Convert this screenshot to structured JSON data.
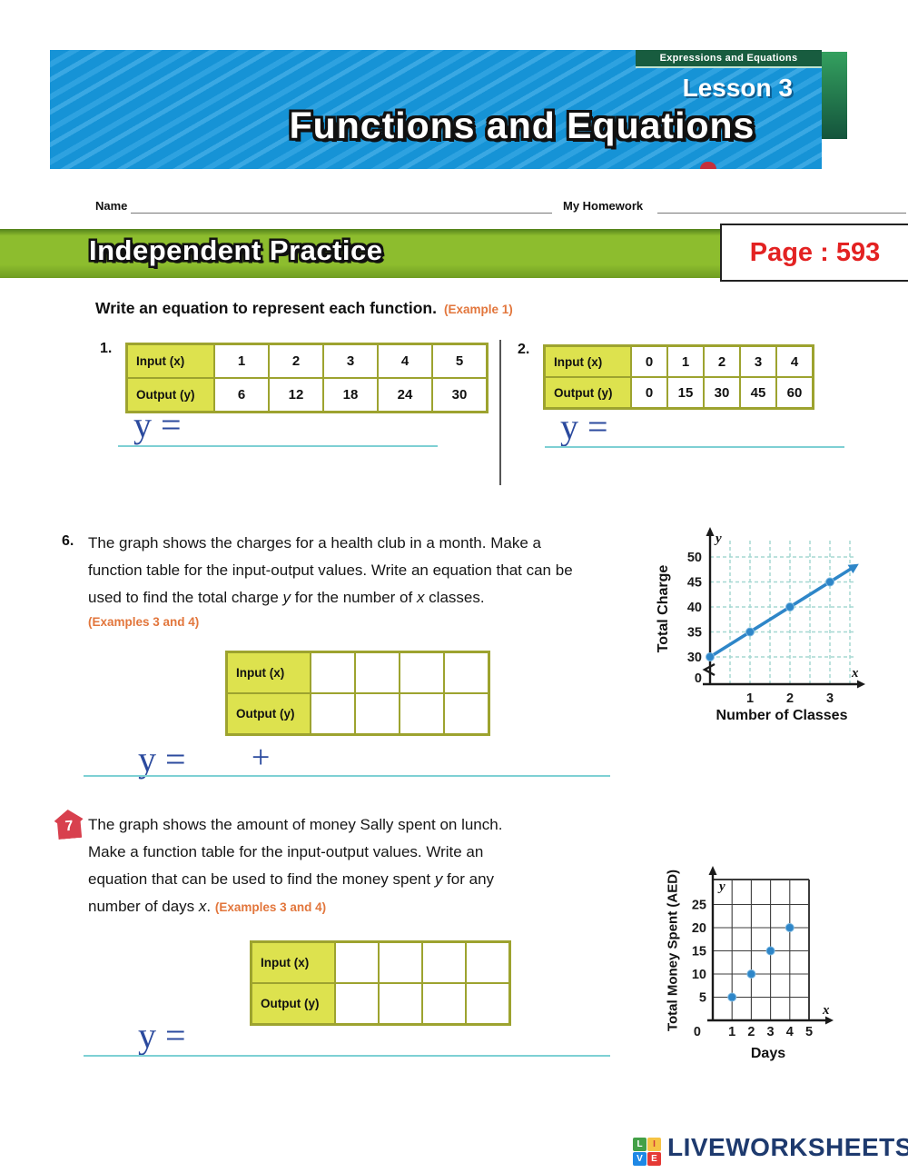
{
  "header": {
    "chapter_label": "Expressions and Equations",
    "lesson_label": "Lesson 3",
    "title": "Functions and Equations"
  },
  "name_row": {
    "name_label": "Name",
    "homework_label": "My Homework"
  },
  "banner": {
    "title": "Independent Practice",
    "page_ref": "Page : 593"
  },
  "section": {
    "instruction": "Write an equation to represent each function.",
    "example_ref": "(Example 1)"
  },
  "problems": {
    "p1": {
      "number": "1.",
      "table": {
        "input_label": "Input (x)",
        "output_label": "Output (y)",
        "inputs": [
          "1",
          "2",
          "3",
          "4",
          "5"
        ],
        "outputs": [
          "6",
          "12",
          "18",
          "24",
          "30"
        ]
      },
      "answer_prefix": "y ="
    },
    "p2": {
      "number": "2.",
      "table": {
        "input_label": "Input (x)",
        "output_label": "Output (y)",
        "inputs": [
          "0",
          "1",
          "2",
          "3",
          "4"
        ],
        "outputs": [
          "0",
          "15",
          "30",
          "45",
          "60"
        ]
      },
      "answer_prefix": "y ="
    },
    "p6": {
      "number": "6.",
      "text_segments": [
        {
          "t": "The graph shows the charges for a health club in a month. Make a function table for the input-output values. Write an equation that can be used to find the total charge "
        },
        {
          "t": "y",
          "i": true
        },
        {
          "t": " for the number of "
        },
        {
          "t": "x",
          "i": true
        },
        {
          "t": " classes."
        }
      ],
      "example_ref": "(Examples 3 and 4)",
      "table": {
        "input_label": "Input (x)",
        "output_label": "Output (y)",
        "empty_columns": 4
      },
      "answer_prefix": "y =",
      "answer_operator": "+"
    },
    "p7": {
      "number": "7",
      "text_segments": [
        {
          "t": "The graph shows the amount of money Sally spent on lunch. Make a function table for the input-output values. Write an equation that can be used to find the money spent "
        },
        {
          "t": "y",
          "i": true
        },
        {
          "t": " for any number of days "
        },
        {
          "t": "x",
          "i": true
        },
        {
          "t": ". "
        },
        {
          "t": "(Examples 3 and 4)",
          "c": "example"
        }
      ],
      "table": {
        "input_label": "Input (x)",
        "output_label": "Output (y)",
        "empty_columns": 4
      },
      "answer_prefix": "y ="
    }
  },
  "footer": {
    "logo_squares": [
      {
        "letter": "L",
        "bg": "#43a047",
        "fg": "#ffffff"
      },
      {
        "letter": "I",
        "bg": "#f6c344",
        "fg": "#d03b3b"
      },
      {
        "letter": "V",
        "bg": "#1e88e5",
        "fg": "#ffffff"
      },
      {
        "letter": "E",
        "bg": "#e53935",
        "fg": "#ffffff"
      }
    ],
    "brand": "LIVEWORKSHEETS"
  },
  "colors": {
    "header_blue": "#1693d6",
    "chapter_green": "#185c3f",
    "banner_green": "#8dbd2e",
    "table_header_yellow": "#dde24e",
    "table_border_olive": "#9da32f",
    "answer_blue": "#2b4a9e",
    "answer_line_cyan": "#7ed0d4",
    "example_orange": "#e2763c",
    "page_number_red": "#e32222",
    "chart_point_blue": "#2e86c8",
    "chart_grid_teal": "#a5d8d2",
    "problem7_icon_red": "#d8404e",
    "brand_navy": "#1e3a6e"
  },
  "chart_data": [
    {
      "id": "health-club",
      "type": "line",
      "x": [
        0,
        1,
        2,
        3
      ],
      "y": [
        30,
        35,
        40,
        45
      ],
      "xticks": [
        1,
        2,
        3
      ],
      "yticks": [
        0,
        30,
        35,
        40,
        45,
        50
      ],
      "xlabel": "Number of Classes",
      "ylabel": "Total Charge",
      "axis_letters": {
        "x": "x",
        "y": "y"
      },
      "axis_break_y": true,
      "grid": "dashed",
      "line_extends_with_arrow": true,
      "point_color": "#2e86c8"
    },
    {
      "id": "lunch-money",
      "type": "scatter",
      "x": [
        1,
        2,
        3,
        4
      ],
      "y": [
        5,
        10,
        15,
        20
      ],
      "xticks": [
        0,
        1,
        2,
        3,
        4,
        5
      ],
      "yticks": [
        0,
        5,
        10,
        15,
        20,
        25
      ],
      "xlabel": "Days",
      "ylabel": "Total Money Spent (AED)",
      "axis_letters": {
        "x": "x",
        "y": "y"
      },
      "grid": "solid",
      "point_color": "#2e86c8"
    }
  ]
}
